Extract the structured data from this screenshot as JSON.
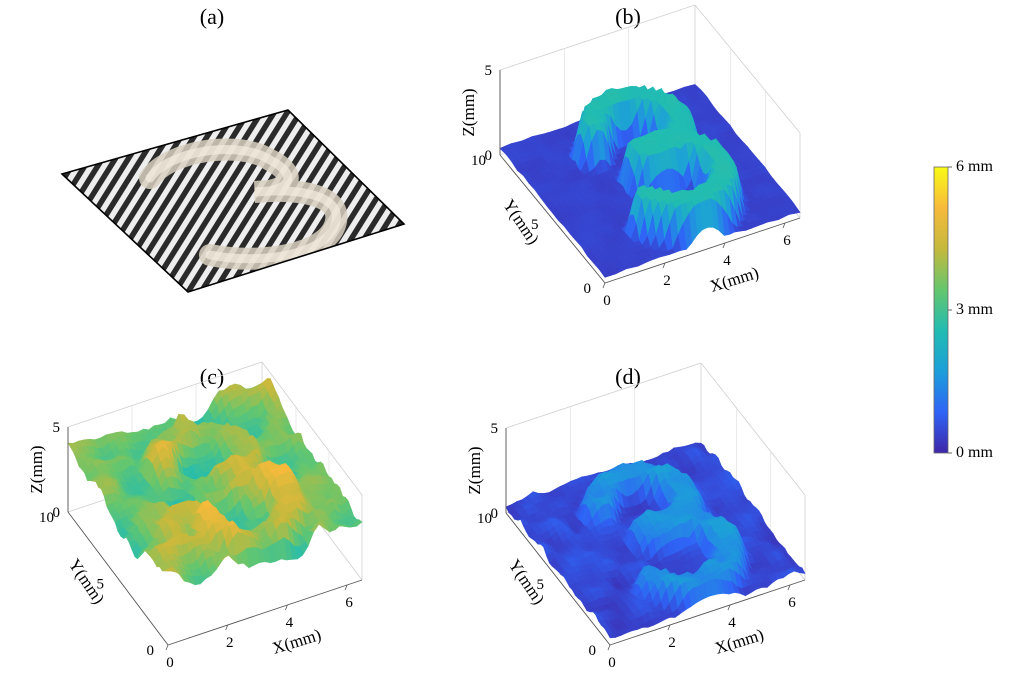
{
  "figure": {
    "panel_labels": [
      "(a)",
      "(b)",
      "(c)",
      "(d)"
    ],
    "photo_icon": "fringe-projection-photo-of-number-3"
  },
  "chart_data": [
    {
      "type": "surface",
      "panel": "(b)",
      "xlabel": "X(mm)",
      "ylabel": "Y(mm)",
      "zlabel": "Z(mm)",
      "xticks": [
        "0",
        "2",
        "4",
        "6"
      ],
      "yticks": [
        "0",
        "5",
        "10"
      ],
      "zticks": [
        "0",
        "5"
      ],
      "xlim": [
        0,
        6.5
      ],
      "ylim": [
        0,
        10
      ],
      "zlim": [
        0,
        5
      ],
      "description_level": "smooth",
      "base_height_mm": 0.4,
      "digit_height_mm": 2.6
    },
    {
      "type": "surface",
      "panel": "(c)",
      "xlabel": "X(mm)",
      "ylabel": "Y(mm)",
      "zlabel": "Z(mm)",
      "xticks": [
        "0",
        "2",
        "4",
        "6"
      ],
      "yticks": [
        "0",
        "5",
        "10"
      ],
      "zticks": [
        "0",
        "5"
      ],
      "xlim": [
        0,
        6.5
      ],
      "ylim": [
        0,
        10
      ],
      "zlim": [
        0,
        5
      ],
      "description_level": "noisy",
      "base_height_mm": 3.5,
      "digit_height_mm": 5.0
    },
    {
      "type": "surface",
      "panel": "(d)",
      "xlabel": "X(mm)",
      "ylabel": "Y(mm)",
      "zlabel": "Z(mm)",
      "xticks": [
        "0",
        "2",
        "4",
        "6"
      ],
      "yticks": [
        "0",
        "5",
        "10"
      ],
      "zticks": [
        "0",
        "5"
      ],
      "xlim": [
        0,
        6.5
      ],
      "ylim": [
        0,
        10
      ],
      "zlim": [
        0,
        5
      ],
      "description_level": "medium",
      "base_height_mm": 0.5,
      "digit_height_mm": 1.8
    }
  ],
  "colorbar": {
    "labels": [
      "6 mm",
      "3 mm",
      "0 mm"
    ],
    "min_mm": 0,
    "max_mm": 6,
    "colors": [
      "#3e26a8",
      "#2f64f6",
      "#1d9fd9",
      "#21bcb2",
      "#66c66d",
      "#c4b93d",
      "#f7ba3c",
      "#f9fb15"
    ]
  }
}
